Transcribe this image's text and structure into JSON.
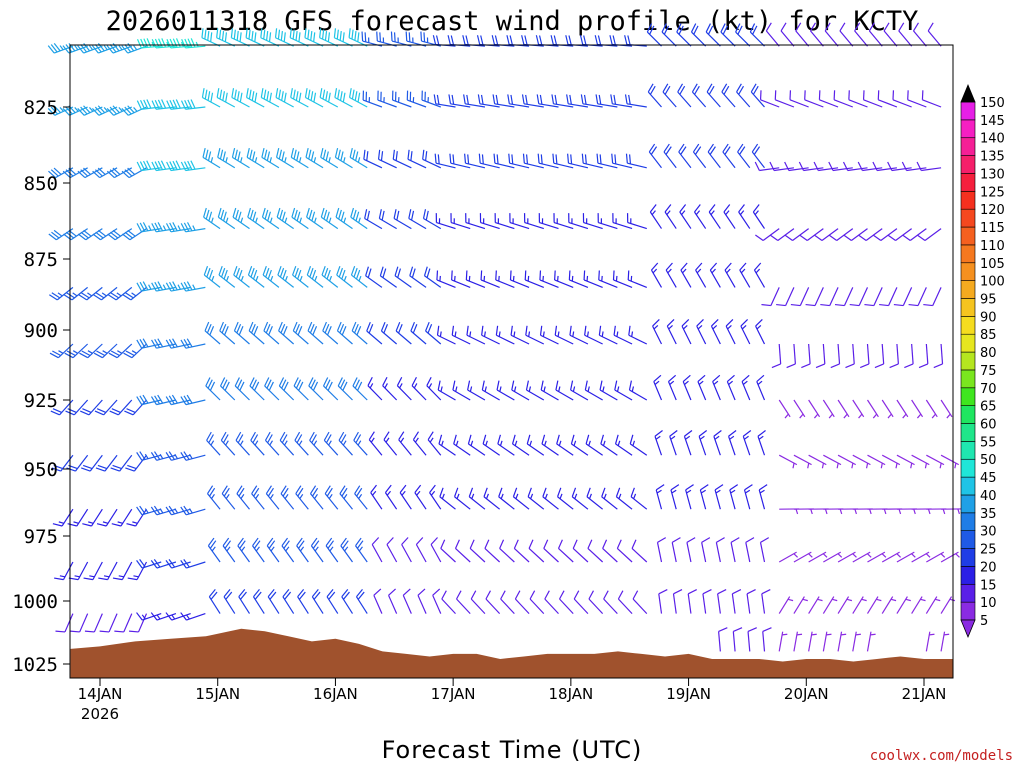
{
  "chart_data": {
    "type": "wind-barb-profile",
    "title": "2026011318 GFS forecast wind profile (kt) for KCTY",
    "xlabel": "Forecast Time (UTC)",
    "ylabel": "",
    "credit": "coolwx.com/models",
    "x_ticks": [
      {
        "label": "14JAN",
        "sub": "2026",
        "day": 1
      },
      {
        "label": "15JAN",
        "sub": "",
        "day": 2
      },
      {
        "label": "16JAN",
        "sub": "",
        "day": 3
      },
      {
        "label": "17JAN",
        "sub": "",
        "day": 4
      },
      {
        "label": "18JAN",
        "sub": "",
        "day": 5
      },
      {
        "label": "19JAN",
        "sub": "",
        "day": 6
      },
      {
        "label": "20JAN",
        "sub": "",
        "day": 7
      },
      {
        "label": "21JAN",
        "sub": "",
        "day": 8
      }
    ],
    "x_range_days": [
      0.75,
      8.25
    ],
    "y_ticks": [
      825,
      850,
      875,
      900,
      925,
      950,
      975,
      1000,
      1025
    ],
    "y_range_hpa": [
      800,
      1025
    ],
    "colorbar": {
      "ticks": [
        5,
        10,
        15,
        20,
        25,
        30,
        35,
        40,
        45,
        50,
        55,
        60,
        65,
        70,
        75,
        80,
        85,
        90,
        95,
        100,
        105,
        110,
        115,
        120,
        125,
        130,
        135,
        140,
        145,
        150
      ],
      "colors": [
        "#8a2be2",
        "#5a1fe8",
        "#2b1fe6",
        "#1f3de6",
        "#1f5ae6",
        "#1f7de6",
        "#1fa0e6",
        "#1fc4e6",
        "#1fe6d8",
        "#1fe6b0",
        "#1fe68a",
        "#1fe660",
        "#3fe61f",
        "#7ae61f",
        "#b5e61f",
        "#e6e61f",
        "#f5dc1f",
        "#f5c41f",
        "#f5aa1f",
        "#f5901f",
        "#f5781f",
        "#f5601f",
        "#f5481f",
        "#f5301f",
        "#f51f3d",
        "#f51f6a",
        "#f51f96",
        "#f51fc2",
        "#e61fe6",
        "#c21fe6"
      ]
    },
    "terrain_pressure_profile": [
      {
        "day": 0.75,
        "p": 1019
      },
      {
        "day": 1.0,
        "p": 1018
      },
      {
        "day": 1.3,
        "p": 1016
      },
      {
        "day": 1.6,
        "p": 1015
      },
      {
        "day": 1.9,
        "p": 1014
      },
      {
        "day": 2.1,
        "p": 1012
      },
      {
        "day": 2.2,
        "p": 1011
      },
      {
        "day": 2.4,
        "p": 1012
      },
      {
        "day": 2.6,
        "p": 1014
      },
      {
        "day": 2.8,
        "p": 1016
      },
      {
        "day": 3.0,
        "p": 1015
      },
      {
        "day": 3.2,
        "p": 1017
      },
      {
        "day": 3.4,
        "p": 1020
      },
      {
        "day": 3.6,
        "p": 1021
      },
      {
        "day": 3.8,
        "p": 1022
      },
      {
        "day": 4.0,
        "p": 1021
      },
      {
        "day": 4.2,
        "p": 1021
      },
      {
        "day": 4.4,
        "p": 1023
      },
      {
        "day": 4.6,
        "p": 1022
      },
      {
        "day": 4.8,
        "p": 1021
      },
      {
        "day": 5.0,
        "p": 1021
      },
      {
        "day": 5.2,
        "p": 1021
      },
      {
        "day": 5.4,
        "p": 1020
      },
      {
        "day": 5.6,
        "p": 1021
      },
      {
        "day": 5.8,
        "p": 1022
      },
      {
        "day": 6.0,
        "p": 1021
      },
      {
        "day": 6.2,
        "p": 1023
      },
      {
        "day": 6.4,
        "p": 1023
      },
      {
        "day": 6.6,
        "p": 1023
      },
      {
        "day": 6.8,
        "p": 1024
      },
      {
        "day": 7.0,
        "p": 1023
      },
      {
        "day": 7.2,
        "p": 1023
      },
      {
        "day": 7.4,
        "p": 1024
      },
      {
        "day": 7.6,
        "p": 1023
      },
      {
        "day": 7.8,
        "p": 1022
      },
      {
        "day": 8.0,
        "p": 1023
      },
      {
        "day": 8.25,
        "p": 1023
      }
    ],
    "wind_levels_hpa": [
      805,
      825,
      845,
      865,
      885,
      905,
      925,
      945,
      965,
      985,
      1005,
      1020
    ],
    "wind_time_segments": [
      {
        "from_day": 0.75,
        "to_day": 1.4,
        "low_dir": 200,
        "high_dir": 250,
        "low_kt": 10,
        "high_kt": 35
      },
      {
        "from_day": 1.4,
        "to_day": 2.0,
        "low_dir": 250,
        "high_dir": 265,
        "low_kt": 15,
        "high_kt": 45
      },
      {
        "from_day": 2.0,
        "to_day": 3.3,
        "low_dir": 330,
        "high_dir": 295,
        "low_kt": 20,
        "high_kt": 40
      },
      {
        "from_day": 3.3,
        "to_day": 4.0,
        "low_dir": 340,
        "high_dir": 285,
        "low_kt": 10,
        "high_kt": 25
      },
      {
        "from_day": 4.0,
        "to_day": 5.7,
        "low_dir": 320,
        "high_dir": 275,
        "low_kt": 10,
        "high_kt": 20
      },
      {
        "from_day": 5.7,
        "to_day": 6.7,
        "low_dir": 355,
        "high_dir": 315,
        "low_kt": 10,
        "high_kt": 20
      },
      {
        "from_day": 6.7,
        "to_day": 8.25,
        "low_dir": 10,
        "high_dir": 320,
        "low_kt": 5,
        "high_kt": 10
      }
    ],
    "wind_time_step_days": 0.125
  }
}
